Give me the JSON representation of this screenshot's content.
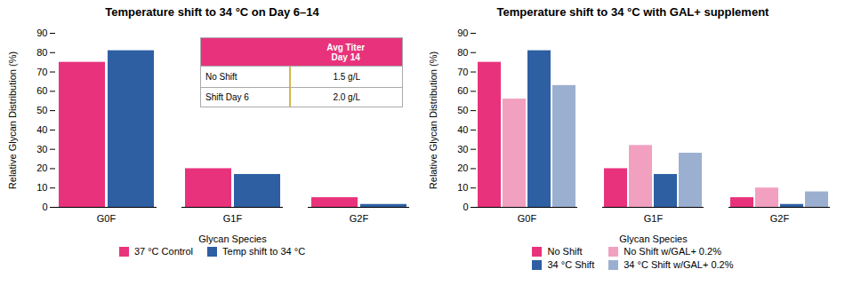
{
  "chart_data": [
    {
      "type": "bar",
      "title": "Temperature shift to 34 °C on Day 6–14",
      "xlabel": "Glycan Species",
      "ylabel": "Relative Glycan Distribution (%)",
      "categories": [
        "G0F",
        "G1F",
        "G2F"
      ],
      "series": [
        {
          "name": "37 °C Control",
          "color": "#E8337C",
          "values": [
            75,
            20,
            5
          ]
        },
        {
          "name": "Temp shift to 34 °C",
          "color": "#2E5FA3",
          "values": [
            81,
            17,
            1.5
          ]
        }
      ],
      "ylim": [
        0,
        90
      ],
      "yticks": [
        0,
        10,
        20,
        30,
        40,
        50,
        60,
        70,
        80,
        90
      ],
      "grid": false,
      "legend": "bottom",
      "annotations": [
        "Avg Titer\nDay 14",
        "No Shift",
        "1.5 g/L",
        "Shift Day 6",
        "2.0 g/L"
      ]
    },
    {
      "type": "bar",
      "title": "Temperature shift to 34 °C with GAL+ supplement",
      "xlabel": "Glycan Species",
      "ylabel": "Relative Glycan Distribution (%)",
      "categories": [
        "G0F",
        "G1F",
        "G2F"
      ],
      "series": [
        {
          "name": "No Shift",
          "color": "#E8337C",
          "values": [
            75,
            20,
            5
          ]
        },
        {
          "name": "No Shift w/GAL+ 0.2%",
          "color": "#F2A0C0",
          "values": [
            56,
            32,
            10
          ]
        },
        {
          "name": "34 °C Shift",
          "color": "#2E5FA3",
          "values": [
            81,
            17,
            1.5
          ]
        },
        {
          "name": "34 °C Shift w/GAL+ 0.2%",
          "color": "#9BB0D0",
          "values": [
            63,
            28,
            8
          ]
        }
      ],
      "ylim": [
        0,
        90
      ],
      "yticks": [
        0,
        10,
        20,
        30,
        40,
        50,
        60,
        70,
        80,
        90
      ],
      "grid": false,
      "legend": "bottom"
    }
  ]
}
